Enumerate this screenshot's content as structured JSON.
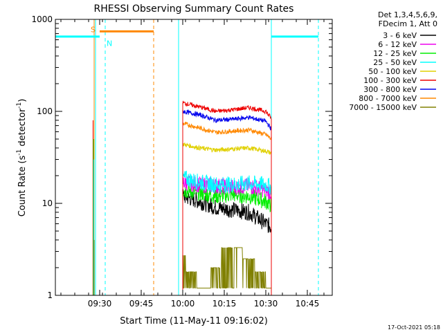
{
  "chart_data": {
    "type": "line",
    "title": "RHESSI Observing Summary Count Rates",
    "xlabel": "Start Time (11-May-11 09:16:02)",
    "ylabel_main": "Count Rate (s",
    "ylabel_sup1": "-1",
    "ylabel_mid": " detector",
    "ylabel_sup2": "-1",
    "ylabel_end": ")",
    "x_range_minutes": [
      -2,
      98
    ],
    "y_scale": "log",
    "ylim": [
      1,
      1000
    ],
    "x_ticks": [
      {
        "label": "09:30",
        "minute": 14
      },
      {
        "label": "09:45",
        "minute": 29
      },
      {
        "label": "10:00",
        "minute": 44
      },
      {
        "label": "10:15",
        "minute": 59
      },
      {
        "label": "10:30",
        "minute": 74
      },
      {
        "label": "10:45",
        "minute": 89
      }
    ],
    "y_ticks": [
      {
        "label": "1",
        "value": 1
      },
      {
        "label": "10",
        "value": 10
      },
      {
        "label": "100",
        "value": 100
      },
      {
        "label": "1000",
        "value": 1000
      }
    ],
    "legend_header": [
      "Det 1,3,4,5,6,9,",
      "FDecim 1, Att 0"
    ],
    "legend_placement": "right",
    "series": [
      {
        "name": "3 - 6 keV",
        "color": "#000000",
        "points": [
          [
            44,
            12
          ],
          [
            50,
            10.5
          ],
          [
            56,
            9
          ],
          [
            62,
            8.5
          ],
          [
            68,
            8
          ],
          [
            74,
            6
          ],
          [
            76,
            5.5
          ]
        ]
      },
      {
        "name": "6 - 12 keV",
        "color": "#ee00ee",
        "points": [
          [
            44,
            17
          ],
          [
            50,
            16
          ],
          [
            56,
            15.5
          ],
          [
            62,
            15
          ],
          [
            68,
            15.5
          ],
          [
            74,
            14
          ],
          [
            76,
            13
          ]
        ]
      },
      {
        "name": "12 - 25 keV",
        "color": "#00ee00",
        "points": [
          [
            44,
            14
          ],
          [
            50,
            13
          ],
          [
            56,
            12
          ],
          [
            62,
            12.5
          ],
          [
            68,
            12
          ],
          [
            74,
            10.5
          ],
          [
            76,
            9.5
          ]
        ]
      },
      {
        "name": "25 - 50 keV",
        "color": "#00ffff",
        "points": [
          [
            44,
            19
          ],
          [
            50,
            17
          ],
          [
            56,
            16
          ],
          [
            62,
            16
          ],
          [
            68,
            16.5
          ],
          [
            74,
            16
          ],
          [
            76,
            15
          ]
        ]
      },
      {
        "name": "50 - 100 keV",
        "color": "#e0d000",
        "points": [
          [
            44,
            44
          ],
          [
            50,
            40
          ],
          [
            56,
            38
          ],
          [
            62,
            39
          ],
          [
            68,
            40
          ],
          [
            74,
            37
          ],
          [
            76,
            35
          ]
        ]
      },
      {
        "name": "100 - 300 keV",
        "color": "#ee0000",
        "points": [
          [
            44,
            124
          ],
          [
            50,
            112
          ],
          [
            56,
            100
          ],
          [
            62,
            104
          ],
          [
            68,
            110
          ],
          [
            74,
            100
          ],
          [
            76,
            84
          ]
        ]
      },
      {
        "name": "300 - 800 keV",
        "color": "#0000ee",
        "points": [
          [
            44,
            100
          ],
          [
            50,
            92
          ],
          [
            56,
            80
          ],
          [
            62,
            82
          ],
          [
            68,
            86
          ],
          [
            74,
            78
          ],
          [
            76,
            64
          ]
        ]
      },
      {
        "name": "800 - 7000 keV",
        "color": "#ff8800",
        "points": [
          [
            44,
            74
          ],
          [
            50,
            66
          ],
          [
            56,
            59
          ],
          [
            62,
            61
          ],
          [
            68,
            63
          ],
          [
            74,
            56
          ],
          [
            76,
            50
          ]
        ]
      },
      {
        "name": "7000 - 15000 keV",
        "color": "#808000",
        "points": [
          [
            44,
            2.7
          ],
          [
            46,
            1.8
          ],
          [
            52,
            1.2
          ],
          [
            56,
            2
          ],
          [
            60,
            3.3
          ],
          [
            63,
            3.3
          ],
          [
            68,
            2.5
          ],
          [
            72,
            1.8
          ],
          [
            76,
            1.2
          ]
        ]
      }
    ],
    "annotations": [
      {
        "label": "S",
        "color": "#ff8800"
      },
      {
        "label": "N",
        "color": "#00ffff"
      }
    ],
    "footer": "17-Oct-2021 05:18"
  }
}
